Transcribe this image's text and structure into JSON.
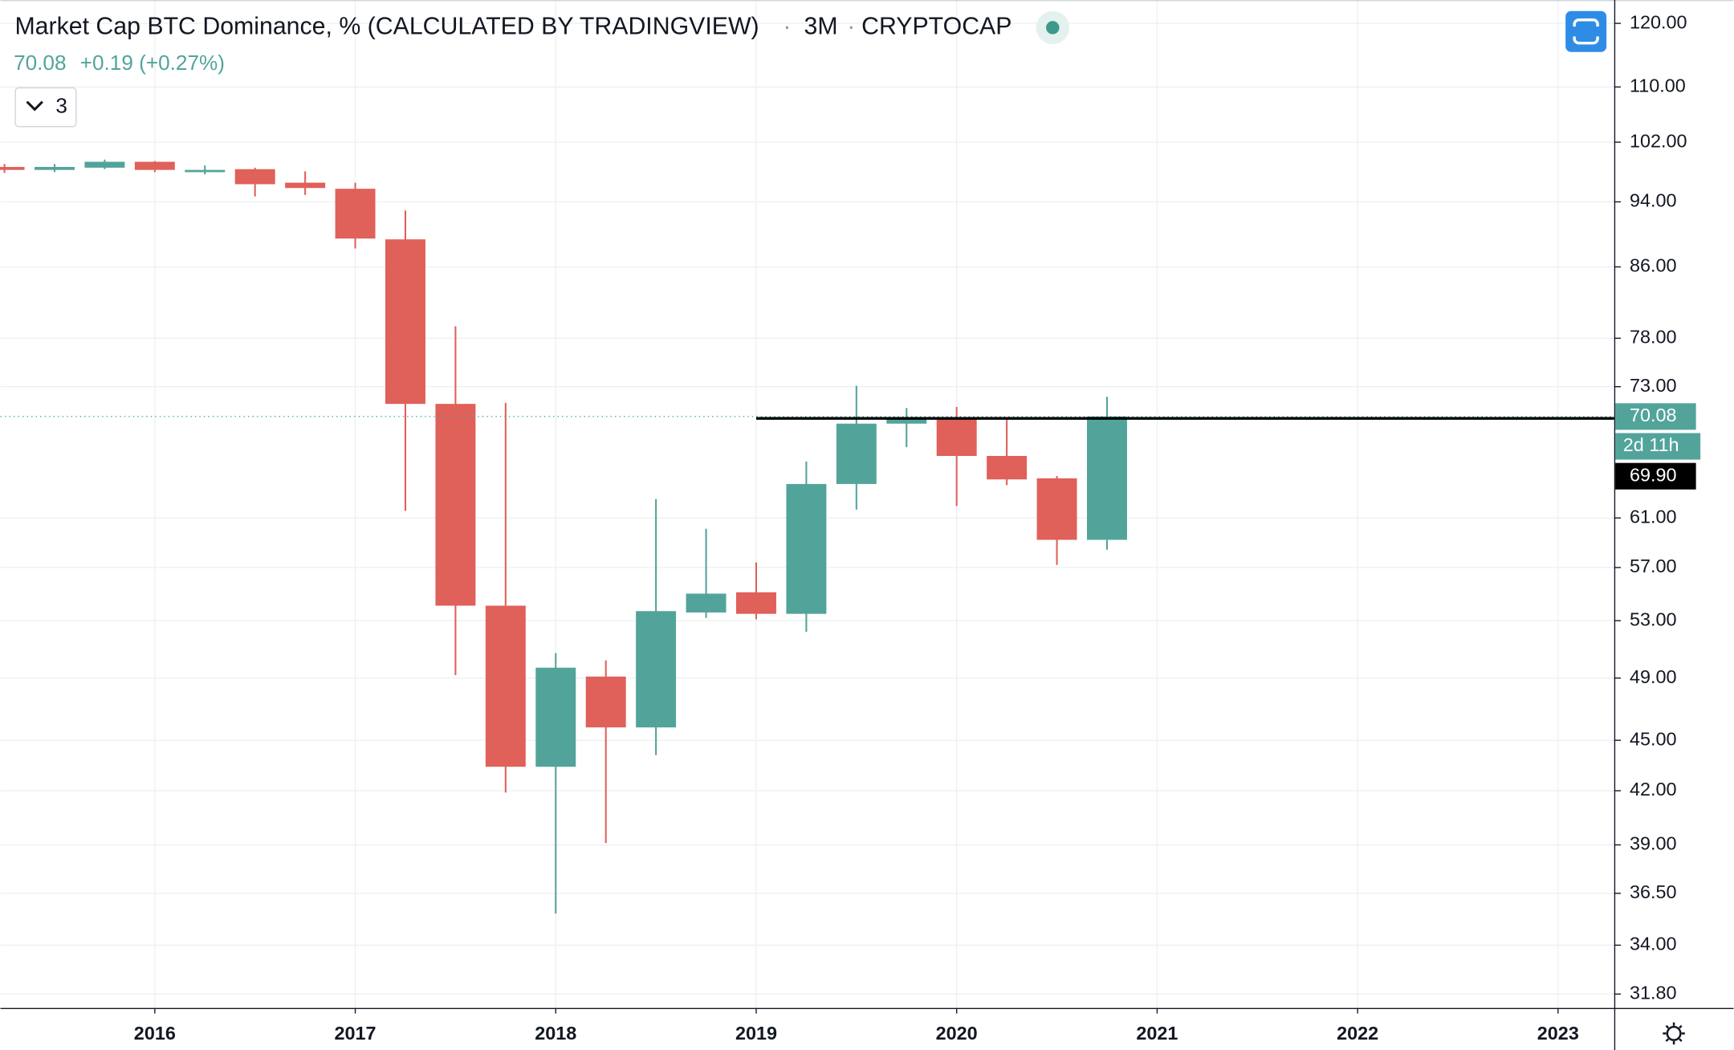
{
  "chart_data": {
    "type": "candlestick",
    "title": "Market Cap BTC Dominance, % (CALCULATED BY TRADINGVIEW)",
    "interval": "3M",
    "exchange": "CRYPTOCAP",
    "legend": {
      "last": "70.08",
      "change": "+0.19 (+0.27%)"
    },
    "indicator_count": "3",
    "log_scale": true,
    "grid": true,
    "up_color": "#52a49a",
    "down_color": "#e0605a",
    "x": [
      2015.25,
      2015.5,
      2015.75,
      2016.0,
      2016.25,
      2016.5,
      2016.75,
      2017.0,
      2017.25,
      2017.5,
      2017.75,
      2018.0,
      2018.25,
      2018.5,
      2018.75,
      2019.0,
      2019.25,
      2019.5,
      2019.75,
      2020.0,
      2020.25,
      2020.5,
      2020.75
    ],
    "open": [
      98.6,
      98.2,
      98.5,
      99.3,
      97.9,
      98.3,
      96.5,
      95.7,
      89.3,
      71.3,
      54.1,
      43.4,
      49.1,
      45.8,
      53.6,
      55.1,
      53.5,
      63.9,
      69.4,
      70.0,
      66.4,
      64.4,
      59.2
    ],
    "high": [
      99.0,
      99.0,
      99.6,
      99.4,
      98.8,
      98.5,
      98.0,
      96.5,
      92.9,
      79.3,
      71.4,
      50.7,
      50.2,
      62.6,
      60.1,
      57.4,
      65.9,
      73.1,
      70.9,
      71.0,
      70.0,
      64.6,
      72.0
    ],
    "low": [
      97.8,
      97.9,
      98.3,
      97.9,
      97.6,
      94.7,
      94.9,
      88.2,
      61.6,
      49.2,
      41.9,
      35.5,
      39.1,
      44.1,
      53.2,
      53.1,
      52.2,
      61.7,
      67.2,
      62.0,
      63.8,
      57.2,
      58.4
    ],
    "close": [
      98.2,
      98.6,
      99.3,
      98.2,
      98.2,
      96.3,
      95.8,
      89.4,
      71.3,
      54.1,
      43.4,
      49.7,
      45.8,
      53.7,
      55.0,
      53.5,
      63.9,
      69.4,
      70.0,
      66.4,
      64.3,
      59.2,
      70.08
    ],
    "xlim": [
      2015.23,
      2023.28
    ],
    "xticks": [
      2016,
      2017,
      2018,
      2019,
      2020,
      2021,
      2022,
      2023
    ],
    "ylim": [
      31.2,
      123.9
    ],
    "yticks": [
      {
        "value": 120,
        "label": "120.00"
      },
      {
        "value": 110,
        "label": "110.00"
      },
      {
        "value": 102,
        "label": "102.00"
      },
      {
        "value": 94,
        "label": "94.00"
      },
      {
        "value": 86,
        "label": "86.00"
      },
      {
        "value": 78,
        "label": "78.00"
      },
      {
        "value": 73,
        "label": "73.00"
      },
      {
        "value": 61,
        "label": "61.00"
      },
      {
        "value": 57,
        "label": "57.00"
      },
      {
        "value": 53,
        "label": "53.00"
      },
      {
        "value": 49,
        "label": "49.00"
      },
      {
        "value": 45,
        "label": "45.00"
      },
      {
        "value": 42,
        "label": "42.00"
      },
      {
        "value": 39,
        "label": "39.00"
      },
      {
        "value": 36.5,
        "label": "36.50"
      },
      {
        "value": 34,
        "label": "34.00"
      },
      {
        "value": 31.8,
        "label": "31.80"
      }
    ],
    "last_price": {
      "value": 70.08,
      "label": "70.08",
      "countdown": "2d 11h"
    },
    "hline": {
      "value": 69.9,
      "label": "69.90",
      "start": 2019.0
    }
  }
}
